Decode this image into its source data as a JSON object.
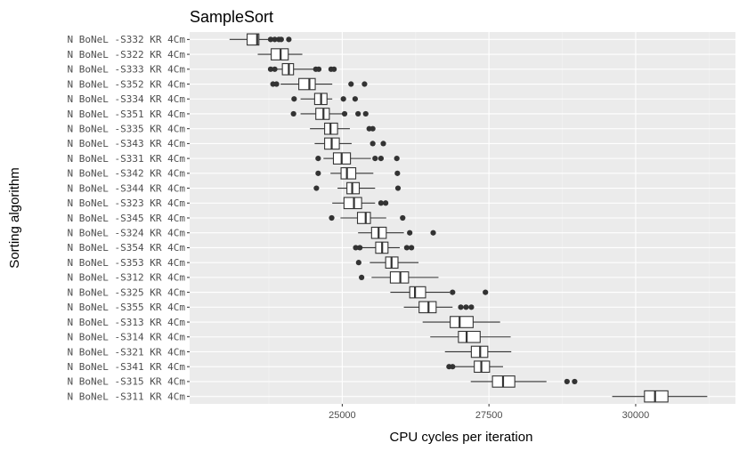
{
  "chart_data": {
    "type": "boxplot",
    "orientation": "horizontal",
    "title": "SampleSort",
    "xlabel": "CPU cycles per iteration",
    "ylabel": "Sorting algorithm",
    "xlim": [
      22400,
      31700
    ],
    "xticks": [
      25000,
      27500,
      30000
    ],
    "xtick_labels": [
      "25000",
      "27500",
      "30000"
    ],
    "grid": true,
    "colors": {
      "panel": "#ebebeb",
      "grid_major": "#ffffff",
      "grid_minor": "#f4f4f4",
      "box_fill": "#ffffff",
      "line": "#333333",
      "outlier": "#333333"
    },
    "categories": [
      "N BoNeL -S332 KR 4Cm",
      "N BoNeL -S322 KR 4Cm",
      "N BoNeL -S333 KR 4Cm",
      "N BoNeL -S352 KR 4Cm",
      "N BoNeL -S334 KR 4Cm",
      "N BoNeL -S351 KR 4Cm",
      "N BoNeL -S335 KR 4Cm",
      "N BoNeL -S343 KR 4Cm",
      "N BoNeL -S331 KR 4Cm",
      "N BoNeL -S342 KR 4Cm",
      "N BoNeL -S344 KR 4Cm",
      "N BoNeL -S323 KR 4Cm",
      "N BoNeL -S345 KR 4Cm",
      "N BoNeL -S324 KR 4Cm",
      "N BoNeL -S354 KR 4Cm",
      "N BoNeL -S353 KR 4Cm",
      "N BoNeL -S312 KR 4Cm",
      "N BoNeL -S325 KR 4Cm",
      "N BoNeL -S355 KR 4Cm",
      "N BoNeL -S313 KR 4Cm",
      "N BoNeL -S314 KR 4Cm",
      "N BoNeL -S321 KR 4Cm",
      "N BoNeL -S341 KR 4Cm",
      "N BoNeL -S315 KR 4Cm",
      "N BoNeL -S311 KR 4Cm"
    ],
    "boxes": [
      {
        "whisker_low": 23080,
        "q1": 23380,
        "median": 23550,
        "q3": 23580,
        "whisker_high": 23760,
        "outliers": [
          23780,
          23850,
          23920,
          23960,
          24090
        ]
      },
      {
        "whisker_low": 23560,
        "q1": 23790,
        "median": 23950,
        "q3": 24080,
        "whisker_high": 24320,
        "outliers": []
      },
      {
        "whisker_low": 23780,
        "q1": 23980,
        "median": 24090,
        "q3": 24170,
        "whisker_high": 24520,
        "outliers": [
          23780,
          23850,
          24550,
          24600,
          24810,
          24860
        ]
      },
      {
        "whisker_low": 23950,
        "q1": 24260,
        "median": 24440,
        "q3": 24540,
        "whisker_high": 24830,
        "outliers": [
          23820,
          23880,
          25150,
          25380
        ]
      },
      {
        "whisker_low": 24290,
        "q1": 24530,
        "median": 24640,
        "q3": 24740,
        "whisker_high": 24830,
        "outliers": [
          24180,
          25020,
          25220
        ]
      },
      {
        "whisker_low": 24290,
        "q1": 24550,
        "median": 24680,
        "q3": 24780,
        "whisker_high": 25000,
        "outliers": [
          24170,
          25040,
          25270,
          25400
        ]
      },
      {
        "whisker_low": 24450,
        "q1": 24700,
        "median": 24800,
        "q3": 24920,
        "whisker_high": 25130,
        "outliers": [
          25460,
          25520
        ]
      },
      {
        "whisker_low": 24530,
        "q1": 24700,
        "median": 24820,
        "q3": 24950,
        "whisker_high": 25160,
        "outliers": [
          25520,
          25700
        ]
      },
      {
        "whisker_low": 24680,
        "q1": 24850,
        "median": 24990,
        "q3": 25140,
        "whisker_high": 25490,
        "outliers": [
          24590,
          25560,
          25660,
          25930
        ]
      },
      {
        "whisker_low": 24800,
        "q1": 24980,
        "median": 25080,
        "q3": 25230,
        "whisker_high": 25530,
        "outliers": [
          24590,
          25940
        ]
      },
      {
        "whisker_low": 24920,
        "q1": 25080,
        "median": 25170,
        "q3": 25290,
        "whisker_high": 25560,
        "outliers": [
          24560,
          25950
        ]
      },
      {
        "whisker_low": 24830,
        "q1": 25030,
        "median": 25200,
        "q3": 25330,
        "whisker_high": 25560,
        "outliers": [
          25660,
          25740
        ]
      },
      {
        "whisker_low": 24970,
        "q1": 25260,
        "median": 25400,
        "q3": 25480,
        "whisker_high": 25750,
        "outliers": [
          24820,
          26030
        ]
      },
      {
        "whisker_low": 25270,
        "q1": 25500,
        "median": 25620,
        "q3": 25750,
        "whisker_high": 26050,
        "outliers": [
          26150,
          26550
        ]
      },
      {
        "whisker_low": 25300,
        "q1": 25570,
        "median": 25680,
        "q3": 25780,
        "whisker_high": 25980,
        "outliers": [
          25230,
          25300,
          26100,
          26180
        ]
      },
      {
        "whisker_low": 25470,
        "q1": 25740,
        "median": 25840,
        "q3": 25950,
        "whisker_high": 26300,
        "outliers": [
          25280
        ]
      },
      {
        "whisker_low": 25500,
        "q1": 25820,
        "median": 25990,
        "q3": 26130,
        "whisker_high": 26640,
        "outliers": [
          25330
        ]
      },
      {
        "whisker_low": 25820,
        "q1": 26150,
        "median": 26240,
        "q3": 26420,
        "whisker_high": 26830,
        "outliers": [
          26880,
          27440
        ]
      },
      {
        "whisker_low": 26050,
        "q1": 26310,
        "median": 26470,
        "q3": 26600,
        "whisker_high": 26880,
        "outliers": [
          27020,
          27110,
          27200
        ]
      },
      {
        "whisker_low": 26370,
        "q1": 26840,
        "median": 27000,
        "q3": 27230,
        "whisker_high": 27690,
        "outliers": []
      },
      {
        "whisker_low": 26500,
        "q1": 26980,
        "median": 27120,
        "q3": 27350,
        "whisker_high": 27870,
        "outliers": []
      },
      {
        "whisker_low": 26750,
        "q1": 27200,
        "median": 27350,
        "q3": 27480,
        "whisker_high": 27880,
        "outliers": []
      },
      {
        "whisker_low": 26900,
        "q1": 27250,
        "median": 27370,
        "q3": 27510,
        "whisker_high": 27740,
        "outliers": [
          26820,
          26880
        ]
      },
      {
        "whisker_low": 27190,
        "q1": 27560,
        "median": 27740,
        "q3": 27940,
        "whisker_high": 28480,
        "outliers": [
          28830,
          28960
        ]
      },
      {
        "whisker_low": 29600,
        "q1": 30150,
        "median": 30330,
        "q3": 30550,
        "whisker_high": 31220,
        "outliers": []
      }
    ]
  }
}
